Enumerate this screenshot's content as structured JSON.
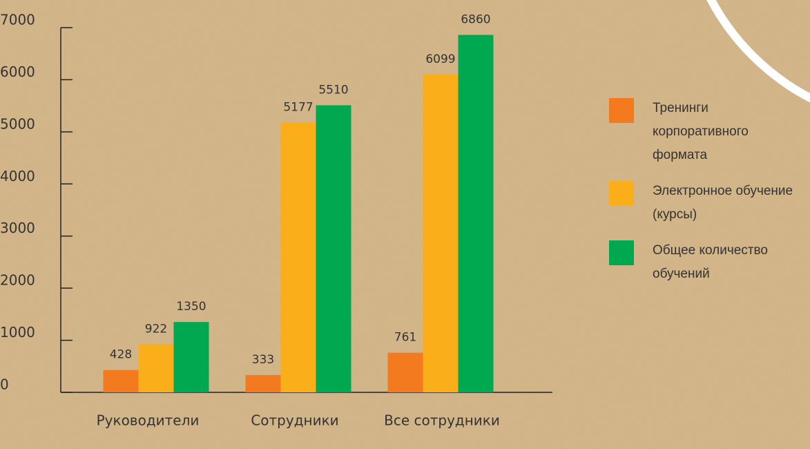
{
  "chart_data": {
    "type": "bar",
    "categories": [
      "Руководители",
      "Сотрудники",
      "Все сотрудники"
    ],
    "series": [
      {
        "name": "Тренинги корпоративного формата",
        "color": "#f47a20",
        "values": [
          428,
          333,
          761
        ]
      },
      {
        "name": "Электронное обучение (курсы)",
        "color": "#f9ae1a",
        "values": [
          922,
          5177,
          6099
        ]
      },
      {
        "name": "Общее количество обучений",
        "color": "#00a84f",
        "values": [
          1350,
          5510,
          6860
        ]
      }
    ],
    "ylim": [
      0,
      7000
    ],
    "yticks": [
      0,
      1000,
      2000,
      3000,
      4000,
      5000,
      6000,
      7000
    ]
  }
}
